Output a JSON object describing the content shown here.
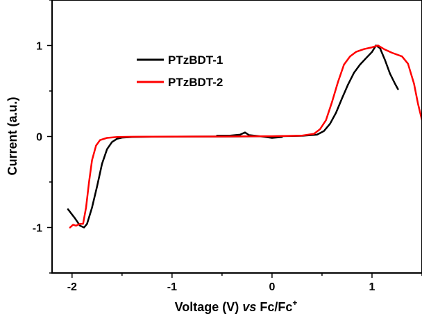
{
  "chart_data": {
    "type": "line",
    "title": "",
    "xlabel_parts": [
      "Voltage (V) ",
      "vs",
      " Fc/Fc",
      "+"
    ],
    "ylabel": "Current (a.u.)",
    "xlim": [
      -2.2,
      1.5
    ],
    "ylim": [
      -1.5,
      1.5
    ],
    "xticks": [
      -2,
      -1,
      0,
      1
    ],
    "xtick_labels": [
      "-2",
      "-1",
      "0",
      "1"
    ],
    "yticks": [
      -1,
      0,
      1
    ],
    "ytick_labels": [
      "-1",
      "0",
      "1"
    ],
    "legend_position": "upper-left-center",
    "series": [
      {
        "name": "PTzBDT-1",
        "color": "#000000",
        "segments": [
          [
            [
              -2.04,
              -0.8
            ],
            [
              -1.97,
              -0.9
            ],
            [
              -1.92,
              -0.98
            ],
            [
              -1.88,
              -1.0
            ],
            [
              -1.85,
              -0.96
            ],
            [
              -1.8,
              -0.78
            ],
            [
              -1.75,
              -0.55
            ],
            [
              -1.7,
              -0.3
            ],
            [
              -1.65,
              -0.14
            ],
            [
              -1.6,
              -0.06
            ],
            [
              -1.55,
              -0.025
            ],
            [
              -1.5,
              -0.012
            ],
            [
              -1.4,
              -0.006
            ],
            [
              -1.2,
              -0.003
            ],
            [
              -0.8,
              -0.001
            ],
            [
              -0.4,
              0.0
            ],
            [
              0.0,
              0.002
            ],
            [
              0.3,
              0.008
            ],
            [
              0.45,
              0.02
            ],
            [
              0.52,
              0.06
            ],
            [
              0.58,
              0.14
            ],
            [
              0.64,
              0.26
            ],
            [
              0.7,
              0.42
            ],
            [
              0.76,
              0.57
            ],
            [
              0.82,
              0.7
            ],
            [
              0.88,
              0.79
            ],
            [
              0.94,
              0.86
            ],
            [
              1.0,
              0.93
            ],
            [
              1.04,
              1.0
            ],
            [
              1.08,
              0.97
            ],
            [
              1.13,
              0.84
            ],
            [
              1.18,
              0.69
            ],
            [
              1.23,
              0.58
            ],
            [
              1.26,
              0.52
            ]
          ],
          [
            [
              -0.55,
              0.01
            ],
            [
              -0.42,
              0.01
            ],
            [
              -0.32,
              0.02
            ],
            [
              -0.27,
              0.045
            ],
            [
              -0.23,
              0.015
            ],
            [
              -0.1,
              0.0
            ],
            [
              0.0,
              -0.015
            ],
            [
              0.1,
              -0.005
            ]
          ]
        ]
      },
      {
        "name": "PTzBDT-2",
        "color": "#ff0000",
        "segments": [
          [
            [
              -1.96,
              -0.98
            ],
            [
              -1.92,
              -0.96
            ],
            [
              -1.89,
              -0.96
            ],
            [
              -1.86,
              -0.78
            ],
            [
              -1.83,
              -0.5
            ],
            [
              -1.8,
              -0.26
            ],
            [
              -1.76,
              -0.1
            ],
            [
              -1.72,
              -0.04
            ],
            [
              -1.65,
              -0.015
            ],
            [
              -1.55,
              -0.006
            ],
            [
              -1.4,
              -0.003
            ],
            [
              -1.0,
              -0.001
            ],
            [
              -0.5,
              0.0
            ],
            [
              0.0,
              0.003
            ],
            [
              0.3,
              0.01
            ],
            [
              0.42,
              0.03
            ],
            [
              0.48,
              0.08
            ],
            [
              0.54,
              0.18
            ],
            [
              0.6,
              0.38
            ],
            [
              0.66,
              0.6
            ],
            [
              0.72,
              0.79
            ],
            [
              0.78,
              0.88
            ],
            [
              0.84,
              0.93
            ],
            [
              0.92,
              0.96
            ],
            [
              1.0,
              0.98
            ],
            [
              1.06,
              1.0
            ],
            [
              1.12,
              0.96
            ],
            [
              1.2,
              0.92
            ],
            [
              1.3,
              0.88
            ],
            [
              1.36,
              0.8
            ],
            [
              1.42,
              0.58
            ],
            [
              1.46,
              0.36
            ],
            [
              1.5,
              0.18
            ]
          ],
          [
            [
              -2.02,
              -1.0
            ],
            [
              -1.99,
              -0.97
            ],
            [
              -1.96,
              -0.98
            ]
          ]
        ]
      }
    ]
  }
}
